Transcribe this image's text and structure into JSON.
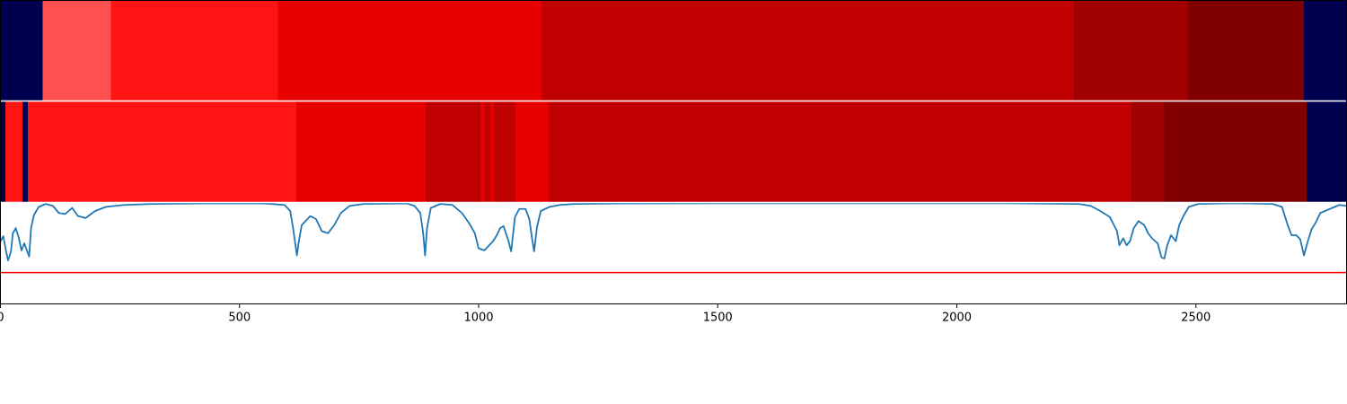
{
  "chart_data": {
    "type": "heatmap",
    "x_range": [
      0,
      2815
    ],
    "x_ticks": [
      0,
      500,
      1000,
      1500,
      2000,
      2500
    ],
    "x_tick_labels": [
      "0",
      "500",
      "1000",
      "1500",
      "2000",
      "2500"
    ],
    "colors": {
      "background": "#000050",
      "line": "#1f77b4",
      "threshold": "#ff0000",
      "band_divider": "#ffffff",
      "axes": "#000000"
    },
    "bands": [
      {
        "segments": [
          {
            "start": 0,
            "end": 88,
            "color": "#000050"
          },
          {
            "start": 88,
            "end": 231,
            "color": "#ff5050"
          },
          {
            "start": 231,
            "end": 580,
            "color": "#ff1414"
          },
          {
            "start": 580,
            "end": 1131,
            "color": "#e60000"
          },
          {
            "start": 1131,
            "end": 2245,
            "color": "#c00000"
          },
          {
            "start": 2245,
            "end": 2484,
            "color": "#a00000"
          },
          {
            "start": 2484,
            "end": 2726,
            "color": "#800000"
          },
          {
            "start": 2726,
            "end": 2815,
            "color": "#000050"
          }
        ]
      },
      {
        "segments": [
          {
            "start": 0,
            "end": 10,
            "color": "#000050"
          },
          {
            "start": 10,
            "end": 46,
            "color": "#ff1414"
          },
          {
            "start": 46,
            "end": 57,
            "color": "#000050"
          },
          {
            "start": 57,
            "end": 619,
            "color": "#ff1414"
          },
          {
            "start": 619,
            "end": 889,
            "color": "#e60000"
          },
          {
            "start": 889,
            "end": 1004,
            "color": "#c00000"
          },
          {
            "start": 1004,
            "end": 1012,
            "color": "#e60000"
          },
          {
            "start": 1012,
            "end": 1024,
            "color": "#c00000"
          },
          {
            "start": 1024,
            "end": 1031,
            "color": "#e60000"
          },
          {
            "start": 1031,
            "end": 1077,
            "color": "#c00000"
          },
          {
            "start": 1077,
            "end": 1146,
            "color": "#e60000"
          },
          {
            "start": 1146,
            "end": 2365,
            "color": "#c00000"
          },
          {
            "start": 2365,
            "end": 2434,
            "color": "#a00000"
          },
          {
            "start": 2434,
            "end": 2731,
            "color": "#800000"
          },
          {
            "start": 2731,
            "end": 2815,
            "color": "#000050"
          }
        ]
      }
    ],
    "line": {
      "ylim": [
        0,
        1
      ],
      "threshold": 0.31,
      "points": [
        [
          0,
          0.62
        ],
        [
          6,
          0.67
        ],
        [
          11,
          0.54
        ],
        [
          16,
          0.43
        ],
        [
          22,
          0.52
        ],
        [
          26,
          0.7
        ],
        [
          32,
          0.75
        ],
        [
          38,
          0.66
        ],
        [
          44,
          0.53
        ],
        [
          50,
          0.6
        ],
        [
          56,
          0.52
        ],
        [
          60,
          0.47
        ],
        [
          64,
          0.75
        ],
        [
          70,
          0.88
        ],
        [
          80,
          0.96
        ],
        [
          95,
          0.99
        ],
        [
          110,
          0.97
        ],
        [
          122,
          0.9
        ],
        [
          135,
          0.89
        ],
        [
          150,
          0.95
        ],
        [
          162,
          0.87
        ],
        [
          178,
          0.85
        ],
        [
          198,
          0.92
        ],
        [
          220,
          0.96
        ],
        [
          260,
          0.98
        ],
        [
          320,
          0.99
        ],
        [
          420,
          0.995
        ],
        [
          550,
          0.995
        ],
        [
          594,
          0.98
        ],
        [
          606,
          0.92
        ],
        [
          612,
          0.75
        ],
        [
          617,
          0.58
        ],
        [
          620,
          0.48
        ],
        [
          624,
          0.62
        ],
        [
          630,
          0.78
        ],
        [
          638,
          0.82
        ],
        [
          648,
          0.87
        ],
        [
          660,
          0.84
        ],
        [
          672,
          0.72
        ],
        [
          685,
          0.7
        ],
        [
          698,
          0.78
        ],
        [
          712,
          0.9
        ],
        [
          730,
          0.97
        ],
        [
          760,
          0.99
        ],
        [
          850,
          0.995
        ],
        [
          866,
          0.97
        ],
        [
          878,
          0.9
        ],
        [
          884,
          0.7
        ],
        [
          888,
          0.48
        ],
        [
          892,
          0.75
        ],
        [
          900,
          0.95
        ],
        [
          920,
          0.99
        ],
        [
          945,
          0.98
        ],
        [
          965,
          0.9
        ],
        [
          980,
          0.8
        ],
        [
          992,
          0.7
        ],
        [
          1000,
          0.55
        ],
        [
          1012,
          0.53
        ],
        [
          1022,
          0.58
        ],
        [
          1030,
          0.62
        ],
        [
          1038,
          0.68
        ],
        [
          1045,
          0.75
        ],
        [
          1052,
          0.77
        ],
        [
          1062,
          0.63
        ],
        [
          1068,
          0.52
        ],
        [
          1076,
          0.86
        ],
        [
          1085,
          0.94
        ],
        [
          1098,
          0.94
        ],
        [
          1106,
          0.84
        ],
        [
          1112,
          0.64
        ],
        [
          1116,
          0.52
        ],
        [
          1122,
          0.76
        ],
        [
          1130,
          0.92
        ],
        [
          1148,
          0.96
        ],
        [
          1170,
          0.98
        ],
        [
          1200,
          0.99
        ],
        [
          1300,
          0.995
        ],
        [
          1500,
          0.997
        ],
        [
          1800,
          0.997
        ],
        [
          2100,
          0.997
        ],
        [
          2255,
          0.99
        ],
        [
          2280,
          0.97
        ],
        [
          2300,
          0.92
        ],
        [
          2320,
          0.86
        ],
        [
          2335,
          0.72
        ],
        [
          2340,
          0.58
        ],
        [
          2348,
          0.65
        ],
        [
          2355,
          0.58
        ],
        [
          2362,
          0.62
        ],
        [
          2370,
          0.75
        ],
        [
          2380,
          0.82
        ],
        [
          2392,
          0.78
        ],
        [
          2400,
          0.7
        ],
        [
          2408,
          0.65
        ],
        [
          2420,
          0.6
        ],
        [
          2428,
          0.46
        ],
        [
          2434,
          0.45
        ],
        [
          2440,
          0.58
        ],
        [
          2448,
          0.68
        ],
        [
          2458,
          0.62
        ],
        [
          2465,
          0.78
        ],
        [
          2475,
          0.88
        ],
        [
          2485,
          0.96
        ],
        [
          2505,
          0.99
        ],
        [
          2580,
          0.997
        ],
        [
          2660,
          0.99
        ],
        [
          2680,
          0.96
        ],
        [
          2692,
          0.78
        ],
        [
          2700,
          0.68
        ],
        [
          2710,
          0.68
        ],
        [
          2718,
          0.64
        ],
        [
          2726,
          0.48
        ],
        [
          2734,
          0.62
        ],
        [
          2742,
          0.74
        ],
        [
          2750,
          0.8
        ],
        [
          2760,
          0.9
        ],
        [
          2775,
          0.93
        ],
        [
          2790,
          0.96
        ],
        [
          2800,
          0.98
        ],
        [
          2815,
          0.97
        ]
      ]
    }
  }
}
